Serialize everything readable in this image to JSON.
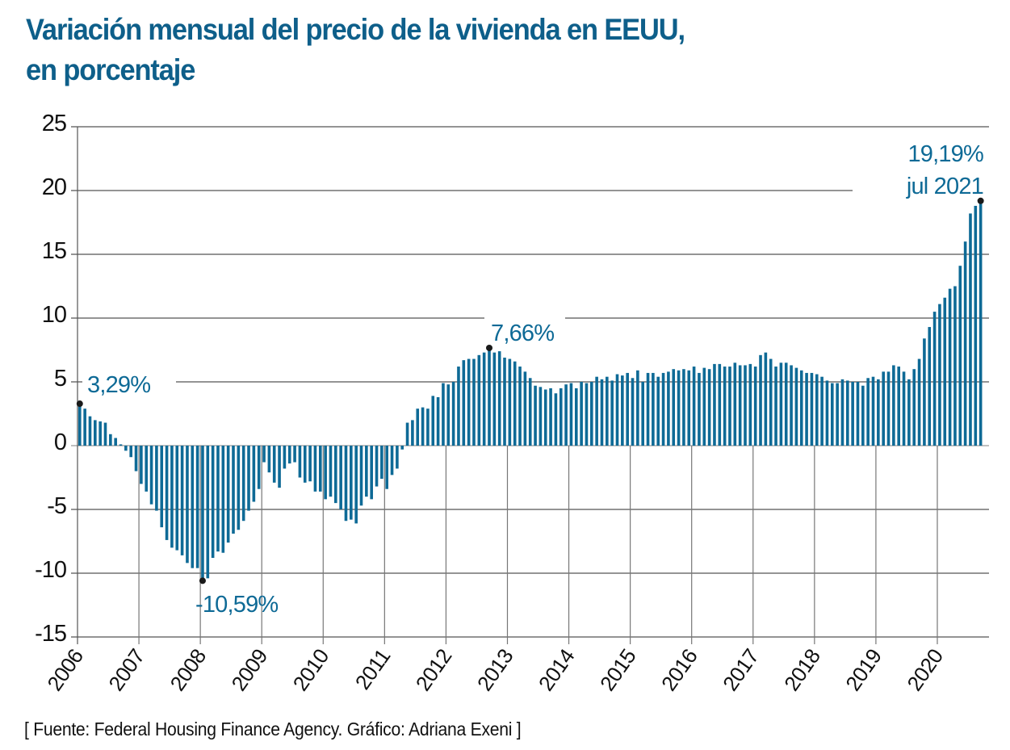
{
  "chart_data": {
    "type": "bar",
    "title_line1": "Variación mensual del precio de la vivienda en EEUU,",
    "title_line2": "en porcentaje",
    "xlabel": "",
    "ylabel": "",
    "ylim": [
      -15,
      25
    ],
    "yticks": [
      25,
      20,
      15,
      10,
      5,
      0,
      -5,
      -10,
      -15
    ],
    "ytick_labels": [
      "25",
      "20",
      "15",
      "10",
      "5",
      "0",
      "-5",
      "-10",
      "-15"
    ],
    "xtick_labels": [
      "2006",
      "2007",
      "2008",
      "2009",
      "2010",
      "2011",
      "2012",
      "2013",
      "2014",
      "2015",
      "2016",
      "2017",
      "2018",
      "2019",
      "2020"
    ],
    "grid": true,
    "bar_color": "#0e6a96",
    "series": [
      {
        "name": "Variación mensual (%)",
        "values": [
          3.29,
          2.9,
          2.3,
          2.0,
          1.9,
          1.8,
          0.9,
          0.6,
          0.1,
          -0.4,
          -0.9,
          -2.0,
          -3.0,
          -3.6,
          -4.6,
          -5.1,
          -6.4,
          -7.4,
          -8.0,
          -8.2,
          -8.6,
          -9.2,
          -9.6,
          -9.6,
          -10.59,
          -10.4,
          -8.8,
          -8.3,
          -8.4,
          -7.6,
          -6.9,
          -6.6,
          -5.9,
          -5.1,
          -4.4,
          -3.4,
          -1.3,
          -2.1,
          -2.9,
          -3.3,
          -1.8,
          -1.4,
          -1.3,
          -2.5,
          -2.9,
          -2.8,
          -3.6,
          -3.6,
          -4.2,
          -4.0,
          -4.5,
          -5.0,
          -5.9,
          -5.8,
          -6.1,
          -4.7,
          -4.0,
          -4.2,
          -3.2,
          -2.6,
          -3.4,
          -2.3,
          -1.8,
          -0.3,
          1.8,
          2.0,
          2.9,
          3.0,
          2.9,
          3.9,
          3.8,
          4.9,
          4.8,
          5.0,
          6.2,
          6.7,
          6.8,
          6.8,
          7.1,
          7.3,
          7.66,
          7.3,
          7.4,
          6.9,
          6.8,
          6.6,
          6.2,
          5.8,
          5.3,
          4.7,
          4.6,
          4.4,
          4.5,
          4.1,
          4.5,
          4.8,
          4.9,
          4.5,
          5.0,
          4.9,
          5.0,
          5.4,
          5.2,
          5.4,
          5.1,
          5.6,
          5.5,
          5.7,
          5.3,
          5.9,
          5.0,
          5.7,
          5.7,
          5.4,
          5.7,
          5.8,
          6.0,
          5.9,
          6.0,
          5.9,
          6.2,
          5.7,
          6.1,
          6.0,
          6.4,
          6.4,
          6.2,
          6.2,
          6.5,
          6.3,
          6.3,
          6.4,
          6.2,
          7.1,
          7.3,
          6.8,
          6.2,
          6.5,
          6.5,
          6.3,
          6.1,
          5.9,
          5.7,
          5.7,
          5.6,
          5.4,
          5.1,
          4.9,
          4.9,
          5.2,
          5.1,
          5.0,
          5.0,
          4.7,
          5.3,
          5.4,
          5.2,
          5.8,
          5.8,
          6.3,
          6.2,
          5.8,
          5.2,
          6.0,
          6.8,
          8.4,
          9.3,
          10.5,
          11.1,
          11.6,
          12.3,
          12.5,
          14.1,
          16.0,
          18.2,
          18.8,
          19.19
        ]
      }
    ],
    "annotations": [
      {
        "index": 0,
        "value": 3.29,
        "label": "3,29%"
      },
      {
        "index": 24,
        "value": -10.59,
        "label": "-10,59%"
      },
      {
        "index": 80,
        "value": 7.66,
        "label": "7,66%"
      },
      {
        "index": 176,
        "value": 19.19,
        "label": "19,19%",
        "label2": "jul 2021"
      }
    ],
    "source": "[ Fuente: Federal Housing Finance Agency. Gráfico: Adriana Exeni ]"
  }
}
